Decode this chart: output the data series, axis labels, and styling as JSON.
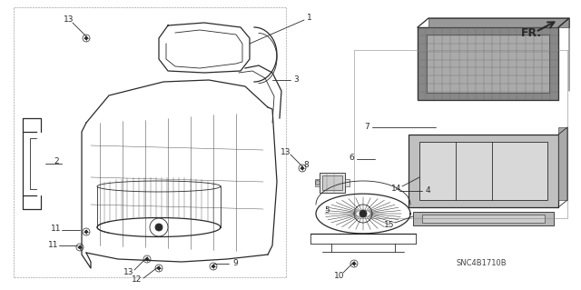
{
  "background_color": "#ffffff",
  "diagram_code": "SNC4B1710B",
  "fig_width": 6.4,
  "fig_height": 3.19,
  "dpi": 100,
  "line_color": "#2a2a2a",
  "gray_fill": "#b8b8b8",
  "light_gray": "#d8d8d8",
  "annotation_fontsize": 6.5,
  "fr_fontsize": 9,
  "code_fontsize": 6
}
